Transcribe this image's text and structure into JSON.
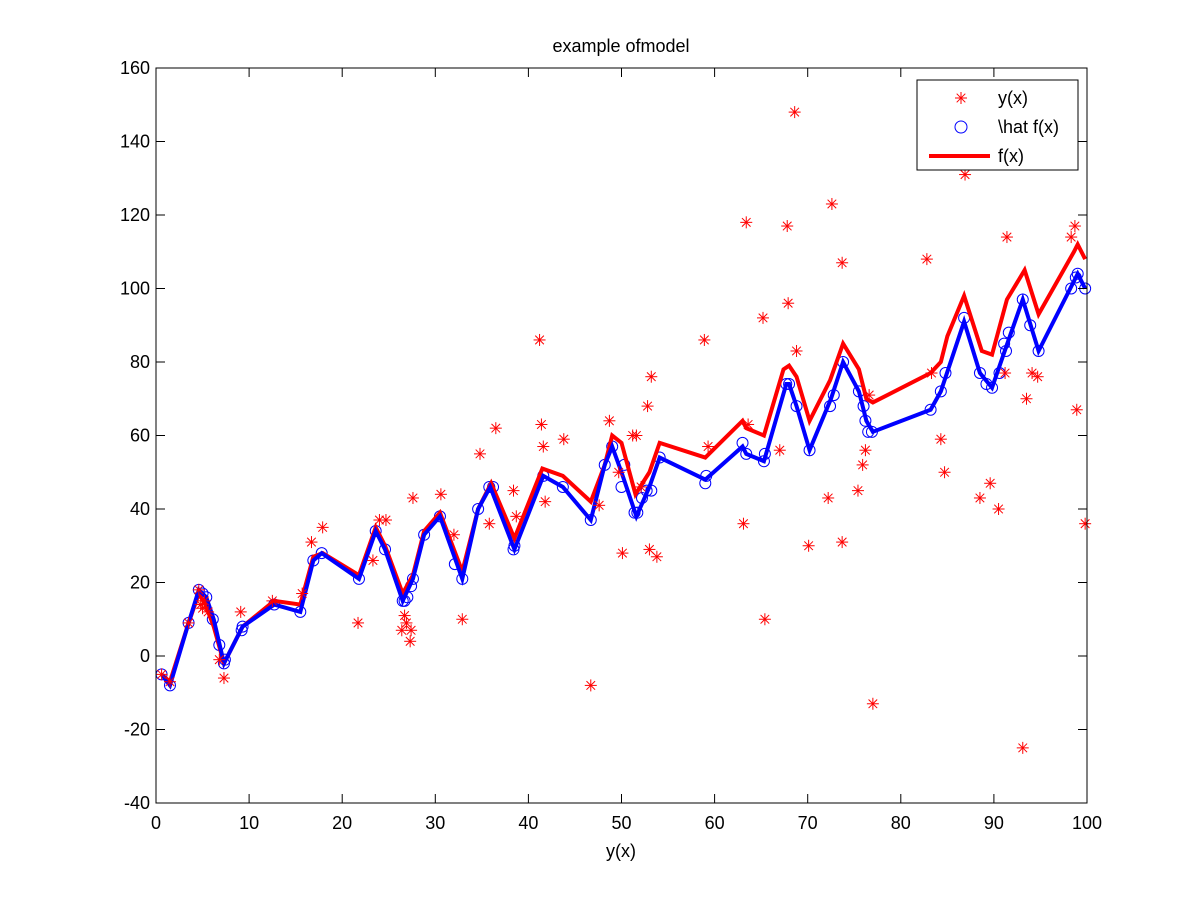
{
  "chart_data": {
    "type": "line",
    "title": "example ofmodel",
    "xlabel": "y(x)",
    "ylabel": "",
    "xlim": [
      0,
      100
    ],
    "ylim": [
      -40,
      160
    ],
    "xticks": [
      0,
      10,
      20,
      30,
      40,
      50,
      60,
      70,
      80,
      90,
      100
    ],
    "yticks": [
      -40,
      -20,
      0,
      20,
      40,
      60,
      80,
      100,
      120,
      140,
      160
    ],
    "grid": false,
    "legend_position": "top-right",
    "colors": {
      "y": "#ff0000",
      "fhat": "#0000ff",
      "f_red": "#ff0000",
      "f_blue": "#0000ff"
    },
    "legend": [
      {
        "label": "y(x)",
        "marker": "star",
        "color": "#ff0000"
      },
      {
        "label": "\\hat f(x)",
        "marker": "circle",
        "color": "#0000ff"
      },
      {
        "label": "f(x)",
        "marker": "line",
        "color": "#ff0000"
      }
    ],
    "series": [
      {
        "name": "y(x)",
        "style": "star",
        "points": [
          [
            0.6,
            -5
          ],
          [
            1.5,
            -7
          ],
          [
            3.5,
            9
          ],
          [
            4.6,
            18
          ],
          [
            4.8,
            14
          ],
          [
            5.0,
            13
          ],
          [
            5.2,
            15
          ],
          [
            5.6,
            12
          ],
          [
            6.8,
            -1
          ],
          [
            7.3,
            -6
          ],
          [
            9.1,
            12
          ],
          [
            12.5,
            15
          ],
          [
            15.7,
            17
          ],
          [
            16.7,
            31
          ],
          [
            17.9,
            35
          ],
          [
            21.7,
            9
          ],
          [
            23.3,
            26
          ],
          [
            24.0,
            37
          ],
          [
            24.7,
            37
          ],
          [
            26.4,
            7
          ],
          [
            26.7,
            11
          ],
          [
            26.9,
            9
          ],
          [
            27.3,
            4
          ],
          [
            27.4,
            7
          ],
          [
            27.6,
            43
          ],
          [
            30.6,
            44
          ],
          [
            32.0,
            33
          ],
          [
            32.9,
            10
          ],
          [
            34.8,
            55
          ],
          [
            35.8,
            36
          ],
          [
            36.5,
            62
          ],
          [
            38.4,
            45
          ],
          [
            38.7,
            38
          ],
          [
            41.2,
            86
          ],
          [
            41.4,
            63
          ],
          [
            41.6,
            57
          ],
          [
            41.8,
            42
          ],
          [
            43.8,
            59
          ],
          [
            46.7,
            -8
          ],
          [
            47.6,
            41
          ],
          [
            48.7,
            64
          ],
          [
            49.7,
            50
          ],
          [
            50.1,
            28
          ],
          [
            51.2,
            60
          ],
          [
            51.6,
            60
          ],
          [
            52.1,
            46
          ],
          [
            52.8,
            68
          ],
          [
            53.0,
            29
          ],
          [
            53.2,
            76
          ],
          [
            53.8,
            27
          ],
          [
            58.9,
            86
          ],
          [
            59.3,
            57
          ],
          [
            63.1,
            36
          ],
          [
            63.4,
            118
          ],
          [
            63.6,
            63
          ],
          [
            65.2,
            92
          ],
          [
            65.4,
            10
          ],
          [
            67.0,
            56
          ],
          [
            67.8,
            117
          ],
          [
            67.9,
            96
          ],
          [
            68.6,
            148
          ],
          [
            68.8,
            83
          ],
          [
            70.1,
            30
          ],
          [
            72.2,
            43
          ],
          [
            72.6,
            123
          ],
          [
            73.7,
            107
          ],
          [
            73.7,
            31
          ],
          [
            75.4,
            45
          ],
          [
            75.9,
            52
          ],
          [
            76.2,
            56
          ],
          [
            76.6,
            71
          ],
          [
            77.0,
            -13
          ],
          [
            82.8,
            108
          ],
          [
            83.3,
            77
          ],
          [
            84.3,
            59
          ],
          [
            84.7,
            50
          ],
          [
            86.9,
            131
          ],
          [
            88.5,
            43
          ],
          [
            89.6,
            47
          ],
          [
            90.5,
            40
          ],
          [
            91.2,
            77
          ],
          [
            91.4,
            114
          ],
          [
            93.1,
            -25
          ],
          [
            93.5,
            70
          ],
          [
            94.1,
            77
          ],
          [
            94.7,
            76
          ],
          [
            98.3,
            114
          ],
          [
            98.7,
            117
          ],
          [
            98.9,
            67
          ],
          [
            99.8,
            36
          ]
        ]
      },
      {
        "name": "\\hat f(x)",
        "style": "circle",
        "points": [
          [
            0.6,
            -5
          ],
          [
            1.5,
            -8
          ],
          [
            3.5,
            9
          ],
          [
            4.6,
            18
          ],
          [
            5.0,
            17
          ],
          [
            5.4,
            16
          ],
          [
            6.1,
            10
          ],
          [
            6.8,
            3
          ],
          [
            7.3,
            -2
          ],
          [
            7.4,
            -1
          ],
          [
            9.2,
            7
          ],
          [
            9.3,
            8
          ],
          [
            12.7,
            14
          ],
          [
            15.5,
            12
          ],
          [
            16.9,
            26
          ],
          [
            17.8,
            28
          ],
          [
            21.8,
            21
          ],
          [
            23.6,
            34
          ],
          [
            24.6,
            29
          ],
          [
            26.5,
            15
          ],
          [
            26.7,
            15
          ],
          [
            27.0,
            16
          ],
          [
            27.4,
            19
          ],
          [
            27.6,
            21
          ],
          [
            28.8,
            33
          ],
          [
            30.5,
            38
          ],
          [
            32.1,
            25
          ],
          [
            32.9,
            21
          ],
          [
            34.6,
            40
          ],
          [
            35.8,
            46
          ],
          [
            36.2,
            46
          ],
          [
            38.4,
            29
          ],
          [
            38.5,
            30
          ],
          [
            41.6,
            49
          ],
          [
            43.7,
            46
          ],
          [
            46.7,
            37
          ],
          [
            48.2,
            52
          ],
          [
            49.0,
            57
          ],
          [
            50.0,
            46
          ],
          [
            50.3,
            52
          ],
          [
            51.4,
            39
          ],
          [
            51.7,
            39
          ],
          [
            52.2,
            43
          ],
          [
            52.7,
            45
          ],
          [
            53.2,
            45
          ],
          [
            54.1,
            54
          ],
          [
            59.0,
            47
          ],
          [
            59.1,
            49
          ],
          [
            63.0,
            58
          ],
          [
            63.4,
            55
          ],
          [
            65.3,
            53
          ],
          [
            65.4,
            55
          ],
          [
            67.7,
            74
          ],
          [
            68.0,
            74
          ],
          [
            68.8,
            68
          ],
          [
            70.2,
            56
          ],
          [
            72.4,
            68
          ],
          [
            72.8,
            71
          ],
          [
            73.8,
            80
          ],
          [
            75.5,
            72
          ],
          [
            76.0,
            68
          ],
          [
            76.2,
            64
          ],
          [
            76.5,
            61
          ],
          [
            76.9,
            61
          ],
          [
            83.2,
            67
          ],
          [
            84.3,
            72
          ],
          [
            84.8,
            77
          ],
          [
            86.8,
            92
          ],
          [
            88.5,
            77
          ],
          [
            89.2,
            74
          ],
          [
            89.8,
            73
          ],
          [
            90.6,
            77
          ],
          [
            91.1,
            85
          ],
          [
            91.3,
            83
          ],
          [
            91.6,
            88
          ],
          [
            93.1,
            97
          ],
          [
            93.9,
            90
          ],
          [
            94.8,
            83
          ],
          [
            98.3,
            100
          ],
          [
            98.8,
            103
          ],
          [
            99.0,
            104
          ],
          [
            99.8,
            100
          ]
        ]
      },
      {
        "name": "f(x)",
        "style": "line-red",
        "points": [
          [
            0.6,
            -5
          ],
          [
            1.5,
            -7
          ],
          [
            3.5,
            9
          ],
          [
            4.6,
            17
          ],
          [
            5.3,
            14
          ],
          [
            6.2,
            8
          ],
          [
            7.3,
            -2
          ],
          [
            9.3,
            8
          ],
          [
            12.7,
            15
          ],
          [
            15.5,
            14
          ],
          [
            16.9,
            27
          ],
          [
            17.9,
            28
          ],
          [
            21.8,
            22
          ],
          [
            23.6,
            35
          ],
          [
            24.6,
            30
          ],
          [
            26.5,
            17
          ],
          [
            27.6,
            22
          ],
          [
            28.8,
            34
          ],
          [
            30.5,
            39
          ],
          [
            32.9,
            23
          ],
          [
            34.6,
            40
          ],
          [
            36.0,
            47
          ],
          [
            38.5,
            32
          ],
          [
            41.5,
            51
          ],
          [
            43.7,
            49
          ],
          [
            46.7,
            42
          ],
          [
            48.2,
            52
          ],
          [
            49.0,
            60
          ],
          [
            50.0,
            58
          ],
          [
            51.5,
            44
          ],
          [
            53.0,
            50
          ],
          [
            54.1,
            58
          ],
          [
            59.0,
            54
          ],
          [
            63.0,
            64
          ],
          [
            63.4,
            62
          ],
          [
            65.3,
            60
          ],
          [
            67.4,
            78
          ],
          [
            68.0,
            79
          ],
          [
            68.8,
            76
          ],
          [
            70.2,
            64
          ],
          [
            72.4,
            75
          ],
          [
            73.8,
            85
          ],
          [
            75.5,
            78
          ],
          [
            76.3,
            70
          ],
          [
            77.0,
            69
          ],
          [
            83.2,
            77
          ],
          [
            84.3,
            80
          ],
          [
            85.0,
            87
          ],
          [
            86.8,
            98
          ],
          [
            88.7,
            83
          ],
          [
            89.8,
            82
          ],
          [
            91.4,
            97
          ],
          [
            93.3,
            105
          ],
          [
            94.8,
            93
          ],
          [
            98.6,
            110
          ],
          [
            99.0,
            112
          ],
          [
            99.8,
            108
          ]
        ]
      },
      {
        "name": "",
        "style": "line-blue",
        "points": [
          [
            0.6,
            -5
          ],
          [
            1.5,
            -8
          ],
          [
            3.5,
            9
          ],
          [
            4.6,
            18
          ],
          [
            5.4,
            16
          ],
          [
            6.2,
            10
          ],
          [
            7.3,
            -2
          ],
          [
            9.3,
            8
          ],
          [
            12.7,
            14
          ],
          [
            15.5,
            12
          ],
          [
            16.9,
            26
          ],
          [
            17.8,
            28
          ],
          [
            21.8,
            21
          ],
          [
            23.6,
            34
          ],
          [
            24.6,
            29
          ],
          [
            26.5,
            15
          ],
          [
            27.6,
            21
          ],
          [
            28.8,
            33
          ],
          [
            30.5,
            38
          ],
          [
            32.9,
            21
          ],
          [
            34.6,
            40
          ],
          [
            35.9,
            46
          ],
          [
            38.5,
            29
          ],
          [
            41.6,
            49
          ],
          [
            43.7,
            46
          ],
          [
            46.7,
            37
          ],
          [
            48.2,
            52
          ],
          [
            49.0,
            57
          ],
          [
            50.0,
            50
          ],
          [
            51.6,
            38
          ],
          [
            53.0,
            46
          ],
          [
            54.1,
            54
          ],
          [
            59.0,
            48
          ],
          [
            63.0,
            57
          ],
          [
            63.4,
            55
          ],
          [
            65.3,
            53
          ],
          [
            67.7,
            74
          ],
          [
            68.0,
            74
          ],
          [
            68.8,
            68
          ],
          [
            70.2,
            56
          ],
          [
            72.5,
            70
          ],
          [
            73.8,
            80
          ],
          [
            75.5,
            72
          ],
          [
            76.3,
            64
          ],
          [
            77.0,
            61
          ],
          [
            83.2,
            67
          ],
          [
            84.3,
            72
          ],
          [
            86.8,
            91
          ],
          [
            88.5,
            77
          ],
          [
            89.8,
            73
          ],
          [
            91.3,
            84
          ],
          [
            93.1,
            97
          ],
          [
            94.8,
            83
          ],
          [
            98.8,
            103
          ],
          [
            99.0,
            104
          ],
          [
            99.8,
            100
          ]
        ]
      }
    ]
  }
}
